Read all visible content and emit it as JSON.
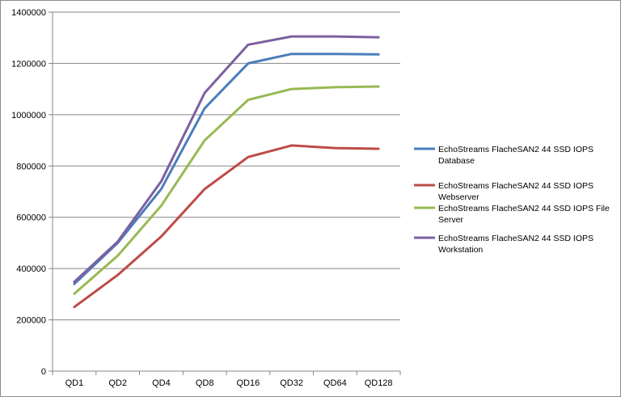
{
  "chart_data": {
    "type": "line",
    "title": "",
    "xlabel": "",
    "ylabel": "",
    "categories": [
      "QD1",
      "QD2",
      "QD4",
      "QD8",
      "QD16",
      "QD32",
      "QD64",
      "QD128"
    ],
    "ylim": [
      0,
      1400000
    ],
    "yticks": [
      "0",
      "200000",
      "400000",
      "600000",
      "800000",
      "1000000",
      "1200000",
      "1400000"
    ],
    "grid": "horizontal",
    "legend_position": "right",
    "series": [
      {
        "name": "EchoStreams FlacheSAN2 44 SSD IOPS Database",
        "color": "#4a7ebb",
        "values": [
          340000,
          500000,
          710000,
          1025000,
          1200000,
          1237000,
          1237000,
          1235000
        ]
      },
      {
        "name": "EchoStreams FlacheSAN2 44 SSD IOPS Webserver",
        "color": "#be4b48",
        "values": [
          250000,
          375000,
          525000,
          710000,
          835000,
          880000,
          870000,
          867000
        ]
      },
      {
        "name": "EchoStreams FlacheSAN2 44 SSD IOPS File Server",
        "color": "#98b954",
        "values": [
          302000,
          450000,
          645000,
          900000,
          1058000,
          1100000,
          1107000,
          1110000
        ]
      },
      {
        "name": "EchoStreams FlacheSAN2 44 SSD IOPS Workstation",
        "color": "#7d60a0",
        "values": [
          348000,
          505000,
          740000,
          1085000,
          1273000,
          1305000,
          1305000,
          1302000
        ]
      }
    ],
    "legend_lines": [
      [
        "EchoStreams FlacheSAN2 44 SSD IOPS",
        "Database"
      ],
      [
        "EchoStreams FlacheSAN2 44 SSD IOPS",
        "Webserver"
      ],
      [
        "EchoStreams FlacheSAN2 44 SSD IOPS File",
        "Server"
      ],
      [
        "EchoStreams FlacheSAN2 44 SSD IOPS",
        "Workstation"
      ]
    ]
  }
}
